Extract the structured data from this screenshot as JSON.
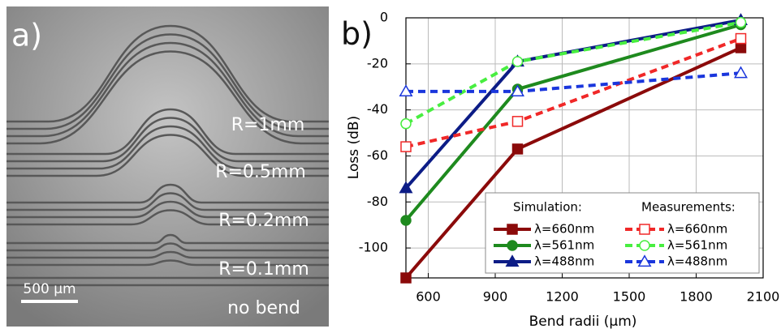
{
  "panel_a": {
    "label": "a)",
    "annotations": [
      "R=1mm",
      "R=0.5mm",
      "R=0.2mm",
      "R=0.1mm",
      "no bend"
    ],
    "scale_bar": "500 µm"
  },
  "chart_data": {
    "type": "line",
    "panel_label": "b)",
    "x_label": "Bend radii (µm)",
    "y_label": "Loss (dB)",
    "x": [
      500,
      1000,
      2000
    ],
    "xlim": [
      500,
      2100
    ],
    "xticks": [
      600,
      900,
      1200,
      1500,
      1800,
      2100
    ],
    "ylim": [
      -113,
      0
    ],
    "yticks": [
      -100,
      -80,
      -60,
      -40,
      -20,
      0
    ],
    "grid": true,
    "legend_titles": [
      "Simulation:",
      "Measurements:"
    ],
    "series": [
      {
        "name": "λ=660nm",
        "color": "#8b0a0a",
        "dashed": false,
        "marker": "square",
        "filled": true,
        "values": [
          -113,
          -57,
          -13
        ]
      },
      {
        "name": "λ=561nm",
        "color": "#1e8a1e",
        "dashed": false,
        "marker": "circle",
        "filled": true,
        "values": [
          -88,
          -31,
          -3
        ]
      },
      {
        "name": "λ=488nm",
        "color": "#0c1c86",
        "dashed": false,
        "marker": "triangle",
        "filled": true,
        "values": [
          -74,
          -19,
          -1
        ]
      },
      {
        "name": "λ=660nm",
        "color": "#f02828",
        "dashed": true,
        "marker": "square",
        "filled": false,
        "values": [
          -56,
          -45,
          -9
        ]
      },
      {
        "name": "λ=561nm",
        "color": "#48ee40",
        "dashed": true,
        "marker": "circle",
        "filled": false,
        "values": [
          -46,
          -19,
          -2
        ]
      },
      {
        "name": "λ=488nm",
        "color": "#1a36dc",
        "dashed": true,
        "marker": "triangle",
        "filled": false,
        "values": [
          -32,
          -32,
          -24
        ]
      }
    ]
  }
}
